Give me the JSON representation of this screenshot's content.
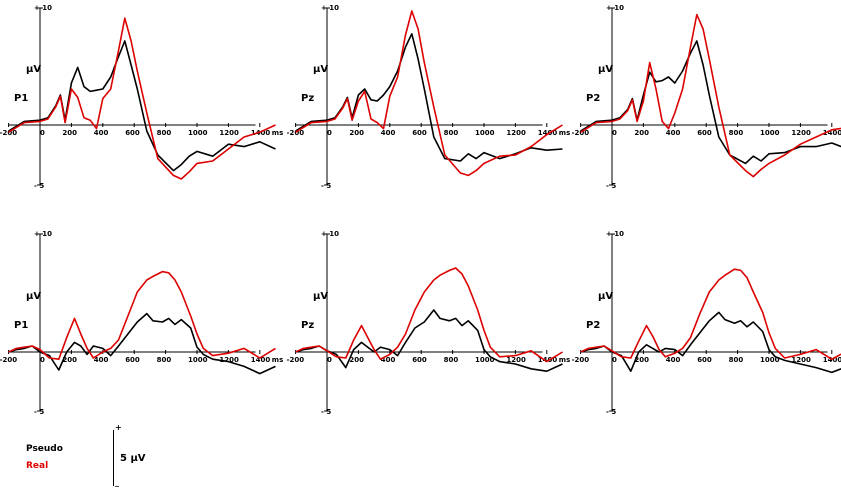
{
  "chart_data": [
    {
      "type": "line",
      "electrode": "P1",
      "ylabel": "µV",
      "xunit": "ms",
      "x": [
        -200,
        -100,
        0,
        50,
        100,
        130,
        160,
        200,
        240,
        280,
        320,
        360,
        400,
        450,
        500,
        540,
        580,
        620,
        680,
        750,
        850,
        900,
        950,
        1000,
        1100,
        1200,
        1300,
        1400,
        1500
      ],
      "xticks": [
        -200,
        0,
        200,
        400,
        600,
        800,
        1000,
        1200,
        1400
      ],
      "ylim": [
        -5,
        10
      ],
      "ytick_labels": [
        "+ 10",
        "- 5"
      ],
      "series": [
        {
          "name": "Pseudo",
          "color": "#000000",
          "values": [
            -0.5,
            0.3,
            0.4,
            0.6,
            1.6,
            2.5,
            0.4,
            3.5,
            4.8,
            3.2,
            2.8,
            2.9,
            3.0,
            4.0,
            5.7,
            7.0,
            5.0,
            3.0,
            -0.5,
            -2.5,
            -3.8,
            -3.3,
            -2.6,
            -2.2,
            -2.6,
            -1.6,
            -1.8,
            -1.4,
            -2.0
          ]
        },
        {
          "name": "Real",
          "color": "#dd0000",
          "values": [
            -0.6,
            0.2,
            0.3,
            0.5,
            1.5,
            2.4,
            0.2,
            3.0,
            2.3,
            0.6,
            0.4,
            -0.3,
            2.2,
            3.0,
            6.2,
            8.9,
            7.0,
            4.5,
            1.0,
            -2.8,
            -4.2,
            -4.5,
            -3.9,
            -3.2,
            -3.0,
            -2.0,
            -1.0,
            -0.6,
            0.0
          ]
        }
      ]
    },
    {
      "type": "line",
      "electrode": "Pz",
      "ylabel": "µV",
      "xunit": "ms",
      "x": [
        -200,
        -100,
        0,
        50,
        100,
        130,
        160,
        200,
        240,
        280,
        320,
        360,
        400,
        450,
        500,
        540,
        580,
        620,
        680,
        750,
        850,
        900,
        950,
        1000,
        1100,
        1200,
        1300,
        1400,
        1500
      ],
      "xticks": [
        -200,
        0,
        200,
        400,
        600,
        800,
        1000,
        1200,
        1400
      ],
      "ylim": [
        -5,
        10
      ],
      "ytick_labels": [
        "+ 10",
        "- 5"
      ],
      "series": [
        {
          "name": "Pseudo",
          "color": "#000000",
          "values": [
            -0.5,
            0.3,
            0.4,
            0.6,
            1.5,
            2.3,
            0.6,
            2.5,
            3.0,
            2.1,
            2.0,
            2.5,
            3.2,
            4.5,
            6.5,
            7.6,
            5.5,
            3.0,
            -1.0,
            -2.8,
            -3.0,
            -2.4,
            -2.8,
            -2.3,
            -2.8,
            -2.4,
            -1.9,
            -2.1,
            -2.0
          ]
        },
        {
          "name": "Real",
          "color": "#dd0000",
          "values": [
            -0.6,
            0.2,
            0.3,
            0.5,
            1.4,
            2.2,
            0.4,
            2.0,
            2.8,
            0.5,
            0.2,
            -0.3,
            2.4,
            4.0,
            7.5,
            9.5,
            8.0,
            5.2,
            1.5,
            -2.5,
            -4.0,
            -4.2,
            -3.8,
            -3.2,
            -2.6,
            -2.5,
            -1.8,
            -0.8,
            0.0
          ]
        }
      ]
    },
    {
      "type": "line",
      "electrode": "P2",
      "ylabel": "µV",
      "xunit": "ms",
      "x": [
        -200,
        -100,
        0,
        50,
        100,
        130,
        160,
        200,
        240,
        280,
        320,
        360,
        400,
        450,
        500,
        540,
        580,
        620,
        680,
        750,
        850,
        900,
        950,
        1000,
        1100,
        1200,
        1300,
        1400,
        1500
      ],
      "xticks": [
        -200,
        0,
        200,
        400,
        600,
        800,
        1000,
        1200,
        1400
      ],
      "ylim": [
        -5,
        10
      ],
      "ytick_labels": [
        "+ 10",
        "- 5"
      ],
      "series": [
        {
          "name": "Pseudo",
          "color": "#000000",
          "values": [
            -0.5,
            0.3,
            0.4,
            0.6,
            1.3,
            2.2,
            0.4,
            2.5,
            4.4,
            3.6,
            3.7,
            4.0,
            3.5,
            4.5,
            6.0,
            7.0,
            5.0,
            2.5,
            -1.0,
            -2.5,
            -3.2,
            -2.6,
            -3.0,
            -2.4,
            -2.3,
            -1.8,
            -1.8,
            -1.5,
            -2.0
          ]
        },
        {
          "name": "Real",
          "color": "#dd0000",
          "values": [
            -0.6,
            0.2,
            0.3,
            0.5,
            1.2,
            2.1,
            0.3,
            2.0,
            5.2,
            3.0,
            0.3,
            -0.3,
            1.0,
            3.0,
            6.5,
            9.2,
            8.0,
            5.5,
            1.5,
            -2.5,
            -3.8,
            -4.3,
            -3.7,
            -3.2,
            -2.5,
            -1.6,
            -1.0,
            -0.4,
            -0.2
          ]
        }
      ]
    },
    {
      "type": "line",
      "electrode": "P1",
      "ylabel": "µV",
      "xunit": "ms",
      "x": [
        -200,
        -150,
        -100,
        -50,
        0,
        60,
        120,
        170,
        220,
        260,
        300,
        340,
        400,
        450,
        500,
        560,
        620,
        680,
        720,
        780,
        820,
        860,
        900,
        960,
        1000,
        1040,
        1100,
        1200,
        1300,
        1400,
        1500
      ],
      "xticks": [
        -200,
        0,
        200,
        400,
        600,
        800,
        1000,
        1200,
        1400
      ],
      "ylim": [
        -5,
        10
      ],
      "ytick_labels": [
        "+ 10",
        "- 5"
      ],
      "series": [
        {
          "name": "Pseudo",
          "color": "#000000",
          "values": [
            0.0,
            0.2,
            0.3,
            0.5,
            0.0,
            -0.3,
            -1.5,
            0.0,
            0.8,
            0.5,
            -0.2,
            0.5,
            0.3,
            -0.3,
            0.5,
            1.5,
            2.5,
            3.2,
            2.6,
            2.5,
            2.8,
            2.3,
            2.7,
            2.0,
            0.4,
            -0.2,
            -0.6,
            -0.8,
            -1.2,
            -1.8,
            -1.2
          ]
        },
        {
          "name": "Real",
          "color": "#dd0000",
          "values": [
            0.0,
            0.3,
            0.4,
            0.5,
            0.2,
            -0.5,
            -0.6,
            1.2,
            2.8,
            1.5,
            0.3,
            -0.5,
            0.0,
            0.3,
            1.0,
            3.0,
            5.0,
            6.0,
            6.3,
            6.7,
            6.6,
            6.0,
            5.0,
            3.0,
            1.5,
            0.3,
            -0.3,
            -0.1,
            0.3,
            -0.5,
            0.3
          ]
        }
      ]
    },
    {
      "type": "line",
      "electrode": "Pz",
      "ylabel": "µV",
      "xunit": "ms",
      "x": [
        -200,
        -150,
        -100,
        -50,
        0,
        60,
        120,
        170,
        220,
        260,
        300,
        340,
        400,
        450,
        500,
        560,
        620,
        680,
        720,
        780,
        820,
        860,
        900,
        960,
        1000,
        1040,
        1100,
        1200,
        1300,
        1400,
        1500
      ],
      "xticks": [
        -200,
        0,
        200,
        400,
        600,
        800,
        1000,
        1200,
        1400
      ],
      "ylim": [
        -5,
        10
      ],
      "ytick_labels": [
        "+ 10",
        "- 5"
      ],
      "series": [
        {
          "name": "Pseudo",
          "color": "#000000",
          "values": [
            0.0,
            0.2,
            0.3,
            0.5,
            0.1,
            -0.2,
            -1.3,
            0.2,
            0.8,
            0.4,
            0.0,
            0.4,
            0.2,
            -0.3,
            0.8,
            2.0,
            2.5,
            3.5,
            2.8,
            2.6,
            2.8,
            2.2,
            2.6,
            1.8,
            0.2,
            -0.4,
            -0.8,
            -1.0,
            -1.4,
            -1.6,
            -1.0
          ]
        },
        {
          "name": "Real",
          "color": "#dd0000",
          "values": [
            0.0,
            0.3,
            0.4,
            0.5,
            0.1,
            -0.4,
            -0.5,
            1.0,
            2.2,
            1.2,
            0.2,
            -0.6,
            -0.2,
            0.4,
            1.5,
            3.5,
            5.0,
            6.0,
            6.4,
            6.8,
            7.0,
            6.5,
            5.5,
            3.5,
            1.8,
            0.4,
            -0.4,
            -0.3,
            0.1,
            -0.8,
            0.0
          ]
        }
      ]
    },
    {
      "type": "line",
      "electrode": "P2",
      "ylabel": "µV",
      "xunit": "ms",
      "x": [
        -200,
        -150,
        -100,
        -50,
        0,
        60,
        120,
        170,
        220,
        260,
        300,
        340,
        400,
        450,
        500,
        560,
        620,
        680,
        720,
        780,
        820,
        860,
        900,
        960,
        1000,
        1040,
        1100,
        1200,
        1300,
        1400,
        1500
      ],
      "xticks": [
        -200,
        0,
        200,
        400,
        600,
        800,
        1000,
        1200,
        1400
      ],
      "ylim": [
        -5,
        10
      ],
      "ytick_labels": [
        "+ 10",
        "- 5"
      ],
      "series": [
        {
          "name": "Pseudo",
          "color": "#000000",
          "values": [
            0.0,
            0.2,
            0.3,
            0.5,
            0.0,
            -0.3,
            -1.6,
            0.0,
            0.6,
            0.3,
            0.0,
            0.3,
            0.2,
            -0.3,
            0.6,
            1.6,
            2.6,
            3.3,
            2.7,
            2.4,
            2.6,
            2.1,
            2.5,
            1.7,
            0.2,
            -0.4,
            -0.7,
            -1.0,
            -1.3,
            -1.7,
            -1.2
          ]
        },
        {
          "name": "Real",
          "color": "#dd0000",
          "values": [
            0.0,
            0.3,
            0.4,
            0.5,
            0.1,
            -0.4,
            -0.5,
            0.9,
            2.2,
            1.3,
            0.2,
            -0.4,
            -0.1,
            0.3,
            1.2,
            3.2,
            5.0,
            6.0,
            6.4,
            6.9,
            6.8,
            6.2,
            5.0,
            3.3,
            1.6,
            0.3,
            -0.5,
            -0.2,
            0.2,
            -0.6,
            0.1
          ]
        }
      ]
    }
  ],
  "legend": {
    "items": [
      {
        "label": "Pseudo",
        "color": "#000000"
      },
      {
        "label": "Real",
        "color": "#dd0000"
      }
    ]
  },
  "scale_bar": {
    "label": "5 µV",
    "top_sign": "+",
    "bottom_sign": "_"
  }
}
